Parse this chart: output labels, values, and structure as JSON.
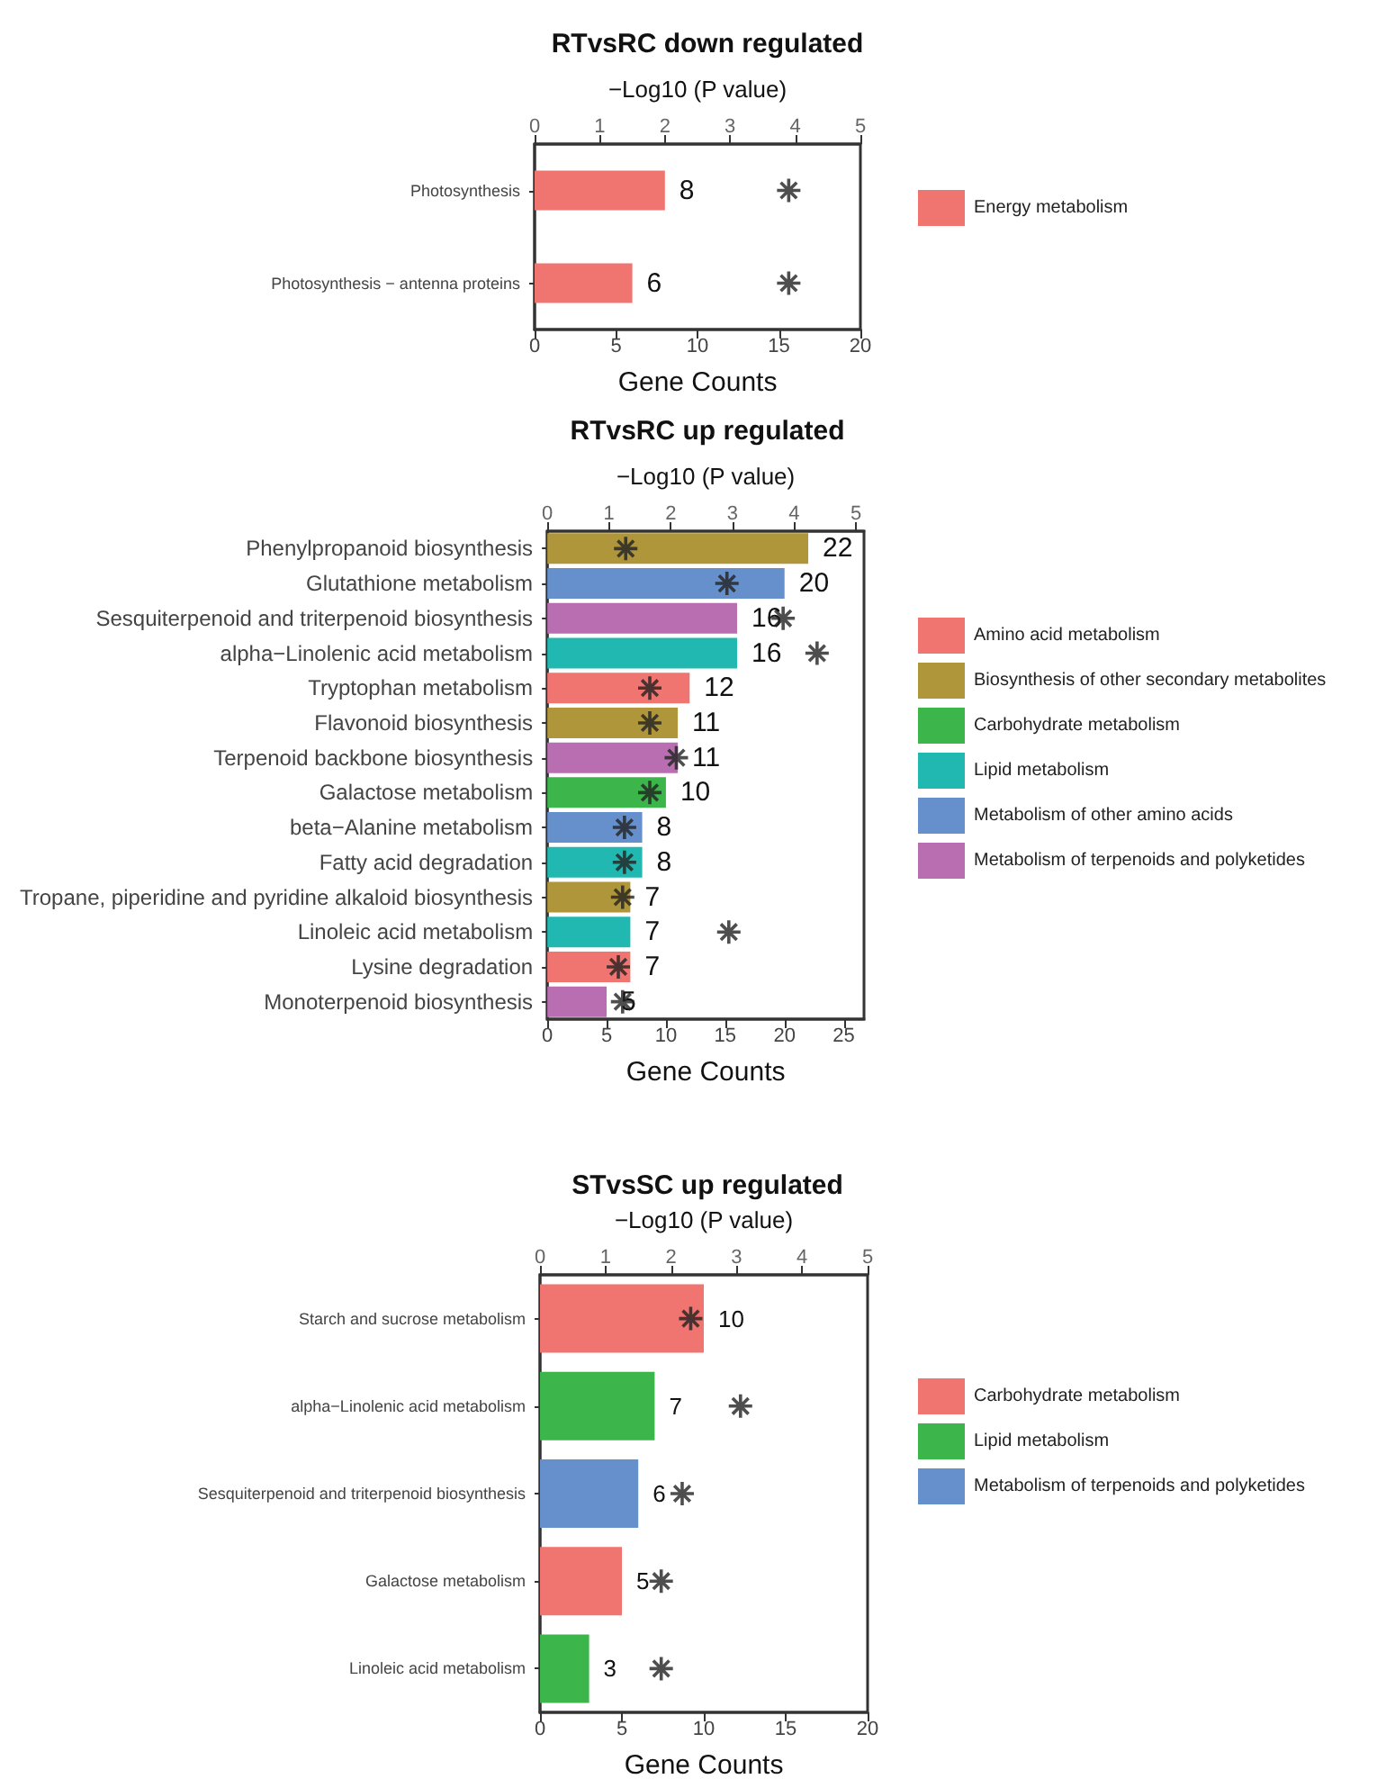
{
  "chart_data": [
    {
      "type": "bar",
      "orientation": "horizontal",
      "title": "RTvsRC down regulated",
      "x2label": "−Log10 (P value)",
      "xlabel": "Gene Counts",
      "categories": [
        "Photosynthesis",
        "Photosynthesis − antenna proteins"
      ],
      "xlim": [
        0,
        20
      ],
      "xticks": [
        0,
        5,
        10,
        15,
        20
      ],
      "x2lim": [
        0,
        5
      ],
      "x2ticks": [
        0,
        1,
        2,
        3,
        4,
        5
      ],
      "grid": false,
      "legend": "right",
      "marker": "cross",
      "series": [
        {
          "name": "Energy metabolism",
          "color": "#f07470",
          "values": [
            8,
            6
          ],
          "value_labels": [
            "8",
            "6"
          ]
        },
        {
          "type": "scatter",
          "axis": "x2",
          "color": "#222222",
          "values": [
            3.9,
            3.9
          ]
        }
      ]
    },
    {
      "type": "bar",
      "orientation": "horizontal",
      "title": "RTvsRC up regulated",
      "x2label": "−Log10 (P value)",
      "xlabel": "Gene Counts",
      "categories": [
        "Phenylpropanoid biosynthesis",
        "Glutathione metabolism",
        "Sesquiterpenoid and triterpenoid biosynthesis",
        "alpha−Linolenic acid metabolism",
        "Tryptophan metabolism",
        "Flavonoid biosynthesis",
        "Terpenoid backbone biosynthesis",
        "Galactose metabolism",
        "beta−Alanine metabolism",
        "Fatty acid degradation",
        "Tropane, piperidine and pyridine alkaloid biosynthesis",
        "Linoleic acid metabolism",
        "Lysine degradation",
        "Monoterpenoid biosynthesis"
      ],
      "xlim": [
        0,
        26.7
      ],
      "xticks": [
        0,
        5,
        10,
        15,
        20,
        25
      ],
      "x2lim": [
        0,
        5.13
      ],
      "x2ticks": [
        0,
        1,
        2,
        3,
        4,
        5
      ],
      "grid": false,
      "legend": "right",
      "marker": "cross",
      "series": [
        {
          "name": "Amino acid metabolism",
          "color": "#f07470",
          "values": [
            null,
            null,
            null,
            null,
            12,
            null,
            null,
            null,
            null,
            null,
            null,
            null,
            7,
            null
          ],
          "value_labels": [
            null,
            null,
            null,
            null,
            "12",
            null,
            null,
            null,
            null,
            null,
            null,
            null,
            "7",
            null
          ]
        },
        {
          "name": "Biosynthesis of other secondary metabolites",
          "color": "#b0963a",
          "values": [
            22,
            null,
            null,
            null,
            null,
            11,
            null,
            null,
            null,
            null,
            7,
            null,
            null,
            null
          ],
          "value_labels": [
            "22",
            null,
            null,
            null,
            null,
            "11",
            null,
            null,
            null,
            null,
            "7",
            null,
            null,
            null
          ]
        },
        {
          "name": "Carbohydrate metabolism",
          "color": "#3cb54a",
          "values": [
            null,
            null,
            null,
            null,
            null,
            null,
            null,
            10,
            null,
            null,
            null,
            null,
            null,
            null
          ],
          "value_labels": [
            null,
            null,
            null,
            null,
            null,
            null,
            null,
            "10",
            null,
            null,
            null,
            null,
            null,
            null
          ]
        },
        {
          "name": "Lipid metabolism",
          "color": "#20b8b0",
          "values": [
            null,
            null,
            null,
            16,
            null,
            null,
            null,
            null,
            null,
            8,
            null,
            7,
            null,
            null
          ],
          "value_labels": [
            null,
            null,
            null,
            "16",
            null,
            null,
            null,
            null,
            null,
            "8",
            null,
            "7",
            null,
            null
          ]
        },
        {
          "name": "Metabolism of other amino acids",
          "color": "#6690cc",
          "values": [
            null,
            20,
            null,
            null,
            null,
            null,
            null,
            null,
            8,
            null,
            null,
            null,
            null,
            null
          ],
          "value_labels": [
            null,
            "20",
            null,
            null,
            null,
            null,
            null,
            null,
            "8",
            null,
            null,
            null,
            null,
            null
          ]
        },
        {
          "name": "Metabolism of terpenoids and polyketides",
          "color": "#b86eb0",
          "values": [
            null,
            null,
            16,
            null,
            null,
            null,
            11,
            null,
            null,
            null,
            null,
            null,
            null,
            5
          ],
          "value_labels": [
            null,
            null,
            "16",
            null,
            null,
            null,
            "11",
            null,
            null,
            null,
            null,
            null,
            null,
            "5"
          ]
        },
        {
          "type": "scatter",
          "axis": "x2",
          "color": "#222222",
          "values": [
            1.27,
            2.91,
            3.82,
            4.37,
            1.66,
            1.66,
            2.09,
            1.66,
            1.25,
            1.25,
            1.22,
            2.94,
            1.15,
            1.22
          ]
        }
      ]
    },
    {
      "type": "bar",
      "orientation": "horizontal",
      "title": "STvsSC up regulated",
      "x2label": "−Log10 (P value)",
      "xlabel": "Gene Counts",
      "categories": [
        "Starch and sucrose metabolism",
        "alpha−Linolenic acid metabolism",
        "Sesquiterpenoid and triterpenoid biosynthesis",
        "Galactose metabolism",
        "Linoleic acid metabolism"
      ],
      "xlim": [
        0,
        20
      ],
      "xticks": [
        0,
        5,
        10,
        15,
        20
      ],
      "x2lim": [
        0,
        5
      ],
      "x2ticks": [
        0,
        1,
        2,
        3,
        4,
        5
      ],
      "grid": false,
      "legend": "right",
      "marker": "cross",
      "series": [
        {
          "name": "Carbohydrate metabolism",
          "color": "#f07470",
          "values": [
            10,
            null,
            null,
            5,
            null
          ],
          "value_labels": [
            "10",
            null,
            null,
            "5",
            null
          ]
        },
        {
          "name": "Lipid metabolism",
          "color": "#3cb54a",
          "values": [
            null,
            7,
            null,
            null,
            3
          ],
          "value_labels": [
            null,
            "7",
            null,
            null,
            "3"
          ]
        },
        {
          "name": "Metabolism of terpenoids and polyketides",
          "color": "#6690cc",
          "values": [
            null,
            null,
            6,
            null,
            null
          ],
          "value_labels": [
            null,
            null,
            "6",
            null,
            null
          ]
        },
        {
          "type": "scatter",
          "axis": "x2",
          "color": "#222222",
          "values": [
            2.3,
            3.06,
            2.17,
            1.85,
            1.85
          ]
        }
      ]
    }
  ]
}
